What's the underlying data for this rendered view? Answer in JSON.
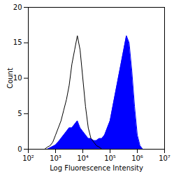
{
  "chart_data": {
    "type": "line",
    "x_label": "Log Fluorescence Intensity",
    "y_label": "Count",
    "x": [
      398,
      501,
      631,
      794,
      1000,
      1259,
      1585,
      1995,
      2512,
      3162,
      3981,
      5012,
      6310,
      7943,
      10000,
      12589,
      15849,
      19953,
      25119,
      31623,
      39811,
      50119,
      63096,
      79433,
      100000,
      125893,
      158489,
      199526,
      251189,
      316228,
      398107,
      501187,
      630957,
      794328,
      1000000,
      1258925,
      1584893
    ],
    "series": [
      {
        "type": "area",
        "color": "#0000ff",
        "values": [
          0,
          0,
          0.2,
          0.4,
          0.6,
          1,
          1.5,
          2,
          2.5,
          3,
          3,
          3.5,
          4,
          3,
          2.5,
          2,
          1.5,
          1.5,
          1.2,
          1.2,
          1.5,
          1.5,
          2,
          3,
          4,
          6,
          8,
          10,
          12,
          14,
          16,
          15,
          11,
          6,
          2,
          0.5,
          0
        ]
      },
      {
        "type": "line",
        "color": "#000000",
        "values": [
          0,
          0.3,
          0.5,
          1,
          2,
          3,
          4,
          5.5,
          7,
          9,
          12,
          14,
          16,
          14,
          10,
          6,
          3,
          1.5,
          1,
          0.5,
          0.3,
          0,
          0,
          0,
          0,
          0,
          0,
          0,
          0,
          0,
          0,
          0,
          0,
          0,
          0,
          0,
          0
        ]
      }
    ],
    "log": "x",
    "grid": false,
    "xlim": [
      100,
      10000000
    ],
    "xticks": [
      {
        "value": 100,
        "label": "10²"
      },
      {
        "value": 1000,
        "label": "10³"
      },
      {
        "value": 10000,
        "label": "10⁴"
      },
      {
        "value": 100000,
        "label": "10⁵"
      },
      {
        "value": 1000000,
        "label": "10⁶"
      },
      {
        "value": 10000000,
        "label": "10⁷"
      }
    ],
    "ylim": [
      0,
      20
    ],
    "yticks": [
      0,
      5,
      10,
      15,
      20
    ]
  }
}
